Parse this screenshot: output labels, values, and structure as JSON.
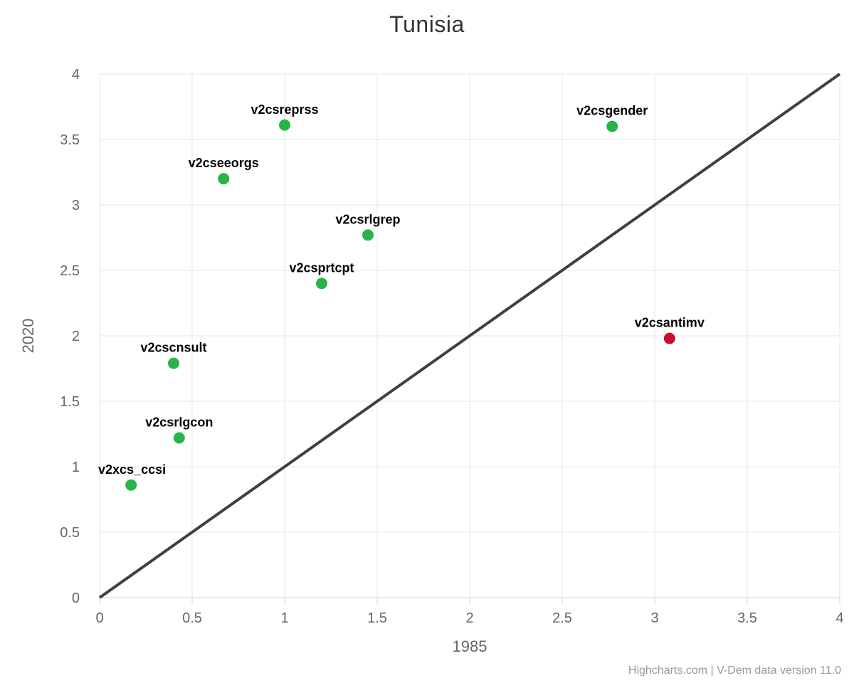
{
  "title": "Tunisia",
  "credits": "Highcharts.com | V-Dem data version 11.0",
  "chart_data": {
    "type": "scatter",
    "title": "Tunisia",
    "xlabel": "1985",
    "ylabel": "2020",
    "xlim": [
      0,
      4
    ],
    "ylim": [
      0,
      4
    ],
    "xticks": [
      0,
      0.5,
      1,
      1.5,
      2,
      2.5,
      3,
      3.5,
      4
    ],
    "yticks": [
      0,
      0.5,
      1,
      1.5,
      2,
      2.5,
      3,
      3.5,
      4
    ],
    "grid": true,
    "legend": "none",
    "reference_line": {
      "from": [
        0,
        0
      ],
      "to": [
        4,
        4
      ]
    },
    "points": [
      {
        "label": "v2xcs_ccsi",
        "x": 0.17,
        "y": 0.86,
        "color": "#28b44b"
      },
      {
        "label": "v2csrlgcon",
        "x": 0.43,
        "y": 1.22,
        "color": "#28b44b"
      },
      {
        "label": "v2cscnsult",
        "x": 0.4,
        "y": 1.79,
        "color": "#28b44b"
      },
      {
        "label": "v2cseeorgs",
        "x": 0.67,
        "y": 3.2,
        "color": "#28b44b"
      },
      {
        "label": "v2csreprss",
        "x": 1.0,
        "y": 3.61,
        "color": "#28b44b"
      },
      {
        "label": "v2csprtcpt",
        "x": 1.2,
        "y": 2.4,
        "color": "#28b44b"
      },
      {
        "label": "v2csrlgrep",
        "x": 1.45,
        "y": 2.77,
        "color": "#28b44b"
      },
      {
        "label": "v2csgender",
        "x": 2.77,
        "y": 3.6,
        "color": "#28b44b"
      },
      {
        "label": "v2csantimv",
        "x": 3.08,
        "y": 1.98,
        "color": "#c8102e"
      }
    ],
    "colors": {
      "point_green": "#28b44b",
      "point_red": "#c8102e",
      "grid_line": "#e6e6e6",
      "axis_line": "#ccd6eb",
      "reference_line": "#404043",
      "title_text": "#333333",
      "tick_text": "#666666",
      "axis_title_text": "#666666",
      "credits_text": "#999999"
    }
  }
}
